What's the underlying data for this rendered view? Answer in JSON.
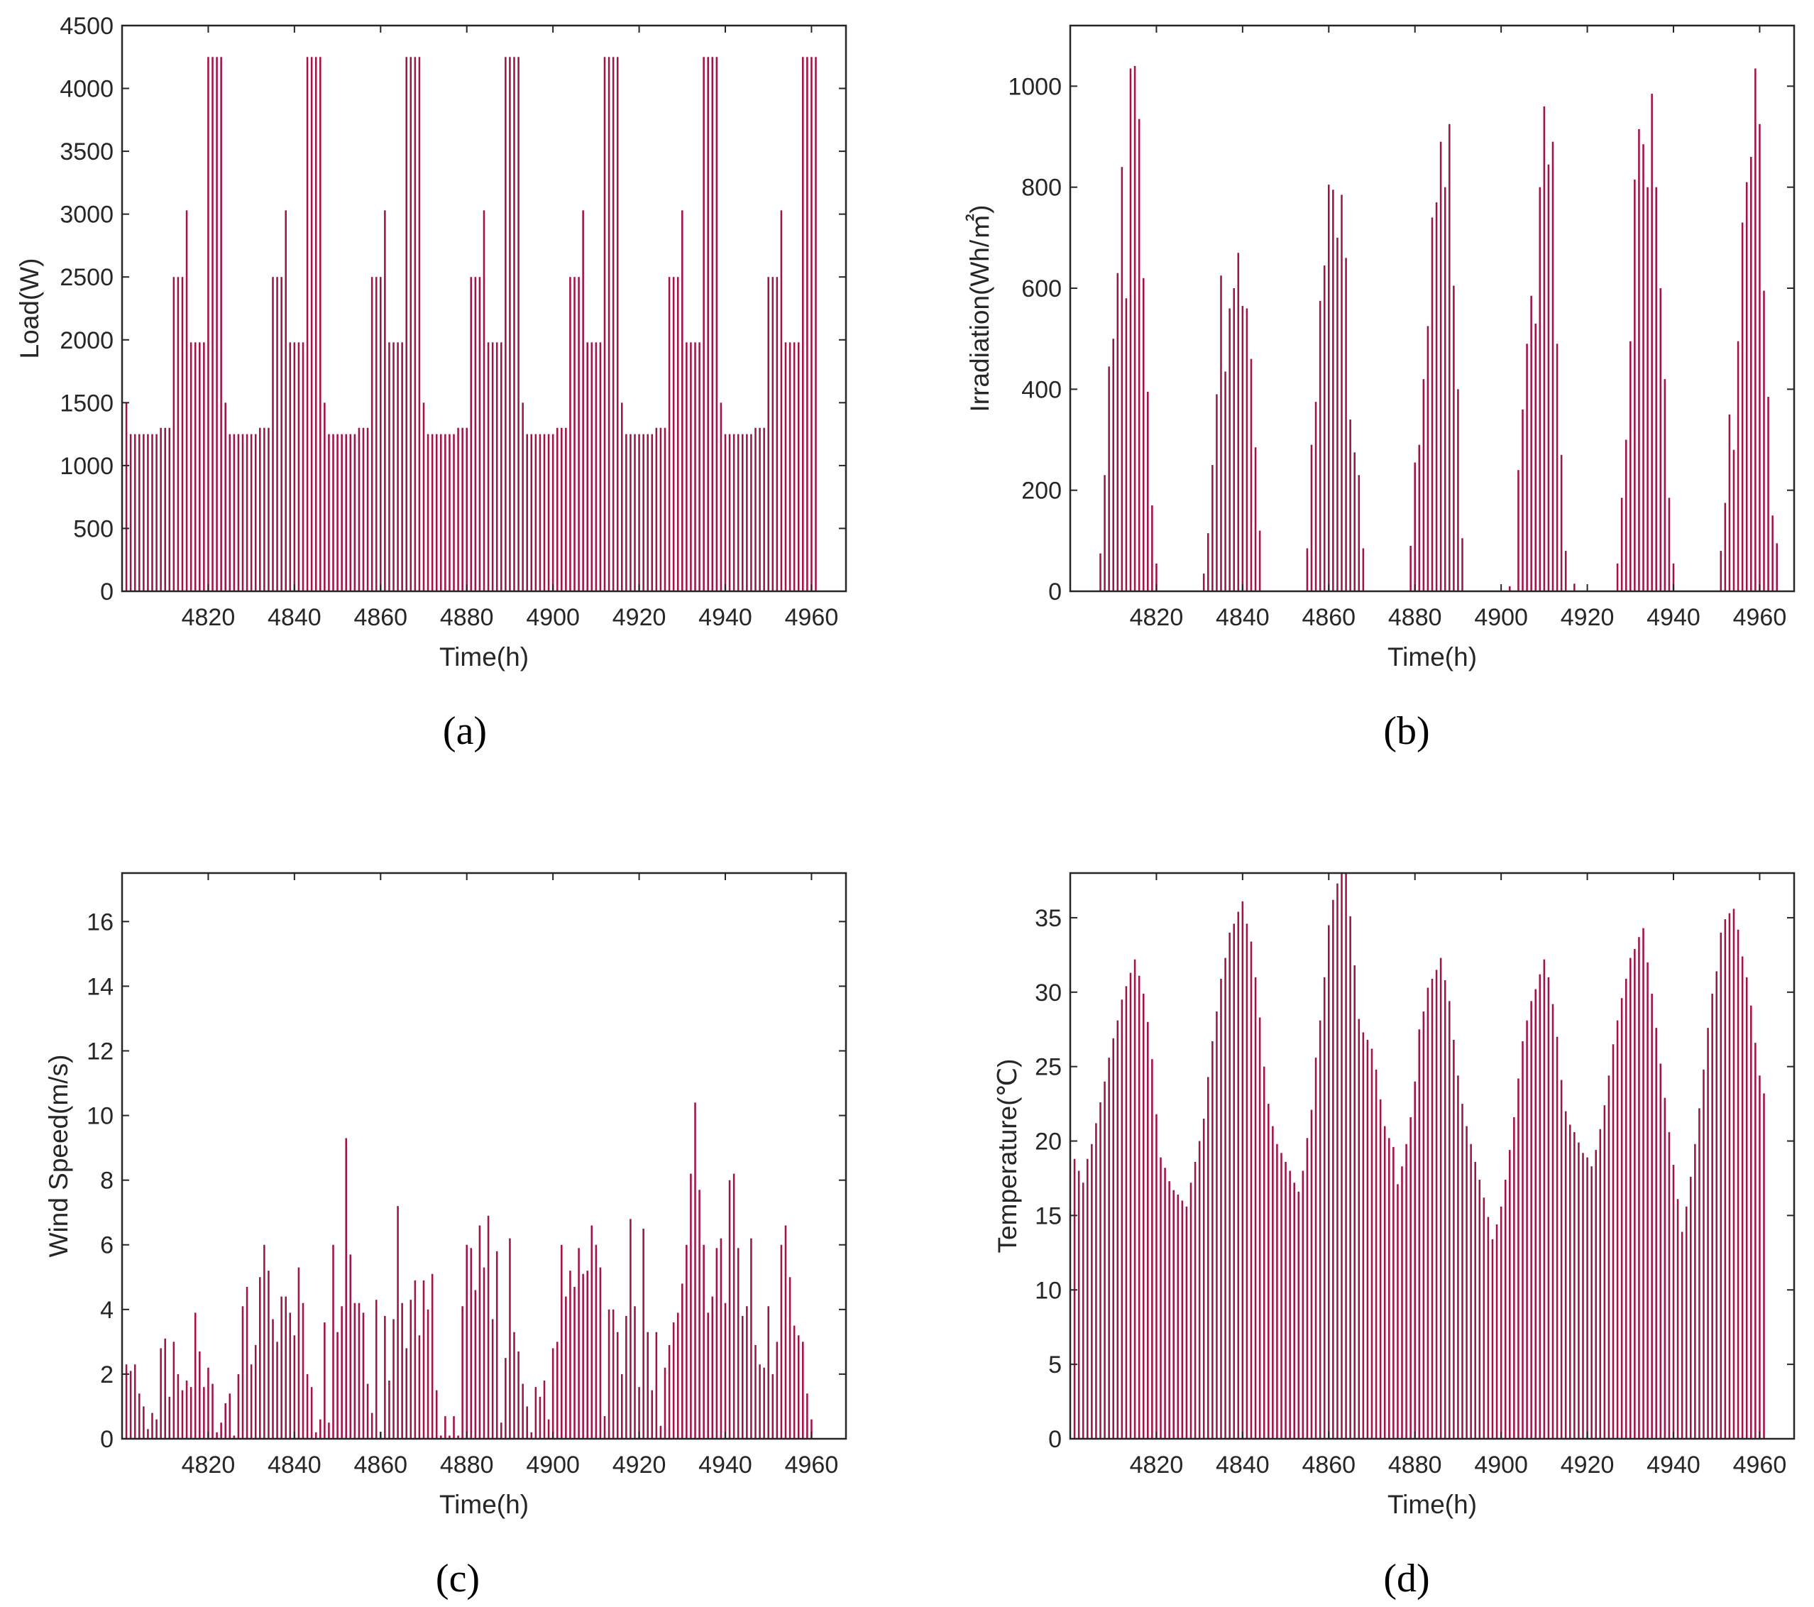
{
  "colors": {
    "bar": "#A0144A",
    "axis": "#262626"
  },
  "chart_data": [
    {
      "type": "bar",
      "caption": "(a)",
      "xlabel": "Time(h)",
      "ylabel": "Load(W)",
      "xlim": [
        4800,
        4968
      ],
      "ylim": [
        0,
        4500
      ],
      "xticks": [
        4820,
        4840,
        4860,
        4880,
        4900,
        4920,
        4940,
        4960
      ],
      "yticks": [
        0,
        500,
        1000,
        1500,
        2000,
        2500,
        3000,
        3500,
        4000,
        4500
      ],
      "x_start": 4801,
      "values": [
        1500,
        1250,
        1250,
        1250,
        1250,
        1250,
        1250,
        1250,
        1300,
        1300,
        1300,
        2500,
        2500,
        2500,
        3030,
        1980,
        1980,
        1980,
        1980,
        4250,
        4250,
        4250,
        4250,
        1500,
        1250,
        1250,
        1250,
        1250,
        1250,
        1250,
        1250,
        1300,
        1300,
        1300,
        2500,
        2500,
        2500,
        3030,
        1980,
        1980,
        1980,
        1980,
        4250,
        4250,
        4250,
        4250,
        1500,
        1250,
        1250,
        1250,
        1250,
        1250,
        1250,
        1250,
        1300,
        1300,
        1300,
        2500,
        2500,
        2500,
        3030,
        1980,
        1980,
        1980,
        1980,
        4250,
        4250,
        4250,
        4250,
        1500,
        1250,
        1250,
        1250,
        1250,
        1250,
        1250,
        1250,
        1300,
        1300,
        1300,
        2500,
        2500,
        2500,
        3030,
        1980,
        1980,
        1980,
        1980,
        4250,
        4250,
        4250,
        4250,
        1500,
        1250,
        1250,
        1250,
        1250,
        1250,
        1250,
        1250,
        1300,
        1300,
        1300,
        2500,
        2500,
        2500,
        3030,
        1980,
        1980,
        1980,
        1980,
        4250,
        4250,
        4250,
        4250,
        1500,
        1250,
        1250,
        1250,
        1250,
        1250,
        1250,
        1250,
        1300,
        1300,
        1300,
        2500,
        2500,
        2500,
        3030,
        1980,
        1980,
        1980,
        1980,
        4250,
        4250,
        4250,
        4250,
        1500,
        1250,
        1250,
        1250,
        1250,
        1250,
        1250,
        1250,
        1300,
        1300,
        1300,
        2500,
        2500,
        2500,
        3030,
        1980,
        1980,
        1980,
        1980,
        4250,
        4250,
        4250,
        4250
      ]
    },
    {
      "type": "bar",
      "caption": "(b)",
      "xlabel": "Time(h)",
      "ylabel": "Irradiation(Wh/㎡)",
      "xlim": [
        4800,
        4968
      ],
      "ylim": [
        0,
        1120
      ],
      "xticks": [
        4820,
        4840,
        4860,
        4880,
        4900,
        4920,
        4940,
        4960
      ],
      "yticks": [
        0,
        200,
        400,
        600,
        800,
        1000
      ],
      "x_start": 4801,
      "values": [
        0,
        0,
        0,
        0,
        0,
        0,
        75,
        230,
        445,
        500,
        630,
        840,
        580,
        1035,
        1040,
        935,
        620,
        395,
        170,
        55,
        0,
        0,
        0,
        0,
        0,
        0,
        0,
        0,
        0,
        0,
        35,
        115,
        250,
        390,
        625,
        435,
        560,
        600,
        670,
        565,
        560,
        460,
        285,
        120,
        0,
        0,
        0,
        0,
        0,
        0,
        0,
        0,
        0,
        0,
        85,
        290,
        375,
        575,
        645,
        805,
        795,
        700,
        785,
        660,
        340,
        275,
        230,
        85,
        0,
        0,
        0,
        0,
        0,
        0,
        0,
        0,
        0,
        0,
        90,
        255,
        290,
        420,
        525,
        740,
        770,
        890,
        800,
        925,
        605,
        400,
        105,
        0,
        0,
        0,
        0,
        0,
        0,
        0,
        0,
        0,
        0,
        10,
        0,
        240,
        360,
        490,
        585,
        530,
        800,
        960,
        845,
        890,
        490,
        270,
        80,
        0,
        15,
        0,
        0,
        0,
        0,
        0,
        0,
        0,
        0,
        0,
        55,
        185,
        300,
        495,
        815,
        915,
        885,
        800,
        985,
        800,
        600,
        420,
        185,
        55,
        0,
        0,
        0,
        0,
        0,
        0,
        0,
        0,
        0,
        0,
        80,
        175,
        350,
        280,
        495,
        730,
        810,
        860,
        1035,
        925,
        595,
        385,
        150,
        95
      ]
    },
    {
      "type": "bar",
      "caption": "(c)",
      "xlabel": "Time(h)",
      "ylabel": "Wind Speed(m/s)",
      "xlim": [
        4800,
        4968
      ],
      "ylim": [
        0,
        17.5
      ],
      "xticks": [
        4820,
        4840,
        4860,
        4880,
        4900,
        4920,
        4940,
        4960
      ],
      "yticks": [
        0,
        2,
        4,
        6,
        8,
        10,
        12,
        14,
        16
      ],
      "x_start": 4801,
      "values": [
        2.3,
        2.1,
        2.3,
        1.4,
        1.0,
        0.3,
        0.8,
        0.6,
        2.8,
        3.1,
        1.3,
        3.0,
        2.0,
        1.5,
        1.8,
        1.6,
        3.9,
        2.7,
        1.6,
        2.2,
        1.7,
        0.2,
        0.5,
        1.1,
        1.4,
        0.1,
        2.0,
        4.1,
        4.7,
        2.3,
        2.9,
        5.0,
        6.0,
        5.2,
        3.7,
        3.0,
        4.4,
        4.4,
        3.9,
        3.2,
        5.3,
        4.2,
        2.0,
        1.6,
        0.2,
        0.6,
        3.6,
        0.5,
        6.0,
        3.3,
        4.1,
        9.3,
        5.7,
        4.2,
        4.2,
        3.9,
        1.7,
        0.8,
        4.3,
        0.2,
        3.8,
        1.8,
        3.7,
        7.2,
        4.2,
        2.8,
        4.3,
        4.9,
        3.2,
        4.9,
        4.0,
        5.1,
        1.5,
        0.1,
        0.7,
        0.1,
        0.7,
        0.1,
        4.1,
        6.0,
        5.9,
        4.6,
        6.6,
        5.3,
        6.9,
        3.7,
        5.8,
        0.5,
        2.5,
        6.2,
        3.3,
        2.7,
        1.7,
        1.0,
        0.2,
        1.6,
        1.3,
        1.8,
        0.6,
        2.8,
        3.0,
        6.0,
        4.4,
        5.2,
        4.7,
        5.9,
        5.1,
        5.2,
        6.6,
        6.0,
        5.3,
        0.7,
        4.0,
        4.0,
        3.3,
        2.0,
        3.8,
        6.8,
        4.1,
        1.6,
        6.5,
        3.3,
        1.5,
        3.3,
        0.4,
        2.2,
        2.9,
        3.6,
        3.9,
        4.8,
        6.0,
        8.2,
        10.4,
        7.7,
        6.0,
        3.9,
        4.4,
        5.9,
        6.2,
        4.2,
        8.0,
        8.2,
        5.9,
        3.8,
        4.1,
        6.2,
        2.9,
        2.3,
        2.2,
        4.1,
        2.0,
        3.0,
        6.0,
        6.6,
        5.0,
        3.5,
        3.2,
        3.0,
        1.4,
        0.6
      ]
    },
    {
      "type": "bar",
      "caption": "(d)",
      "xlabel": "Time(h)",
      "ylabel": "Temperature(℃)",
      "xlim": [
        4800,
        4968
      ],
      "ylim": [
        0,
        38
      ],
      "xticks": [
        4820,
        4840,
        4860,
        4880,
        4900,
        4920,
        4940,
        4960
      ],
      "yticks": [
        0,
        5,
        10,
        15,
        20,
        25,
        30,
        35
      ],
      "x_start": 4801,
      "values": [
        18.8,
        18.0,
        17.2,
        18.8,
        19.8,
        21.2,
        22.6,
        24.0,
        25.6,
        26.9,
        28.1,
        29.5,
        30.4,
        31.3,
        32.2,
        31.1,
        29.9,
        28.0,
        25.5,
        21.8,
        18.9,
        18.2,
        17.3,
        16.7,
        16.4,
        16.0,
        15.6,
        17.2,
        18.6,
        20.0,
        21.5,
        24.3,
        26.7,
        28.7,
        30.9,
        32.3,
        34.0,
        34.6,
        35.4,
        36.1,
        34.6,
        33.4,
        31.0,
        28.3,
        25.0,
        22.5,
        21.0,
        19.8,
        19.2,
        18.6,
        18.0,
        17.2,
        16.6,
        18.0,
        20.2,
        22.1,
        25.6,
        28.1,
        31.0,
        34.5,
        36.2,
        37.3,
        38.0,
        38.0,
        35.1,
        31.8,
        28.2,
        27.3,
        26.8,
        26.2,
        24.8,
        22.8,
        21.0,
        20.2,
        19.6,
        17.1,
        18.3,
        19.8,
        21.6,
        24.0,
        27.5,
        28.7,
        30.3,
        30.9,
        31.5,
        32.3,
        30.8,
        29.4,
        26.8,
        24.4,
        22.5,
        21.0,
        19.8,
        18.6,
        17.4,
        16.2,
        14.9,
        13.4,
        14.4,
        15.6,
        17.4,
        19.4,
        21.6,
        24.2,
        26.7,
        28.1,
        29.4,
        30.2,
        31.2,
        32.2,
        31.0,
        29.2,
        27.0,
        24.1,
        22.0,
        21.1,
        20.6,
        19.9,
        19.2,
        18.9,
        18.3,
        19.4,
        20.8,
        22.4,
        24.4,
        26.5,
        28.1,
        29.6,
        30.9,
        32.3,
        32.9,
        33.7,
        34.3,
        32.0,
        29.9,
        27.6,
        25.2,
        22.9,
        20.6,
        18.4,
        16.1,
        13.9,
        15.6,
        17.6,
        19.8,
        22.2,
        24.8,
        27.6,
        29.9,
        31.4,
        34.0,
        34.9,
        35.3,
        35.6,
        34.2,
        32.4,
        31.0,
        29.1,
        26.6,
        24.4,
        23.2
      ]
    }
  ]
}
